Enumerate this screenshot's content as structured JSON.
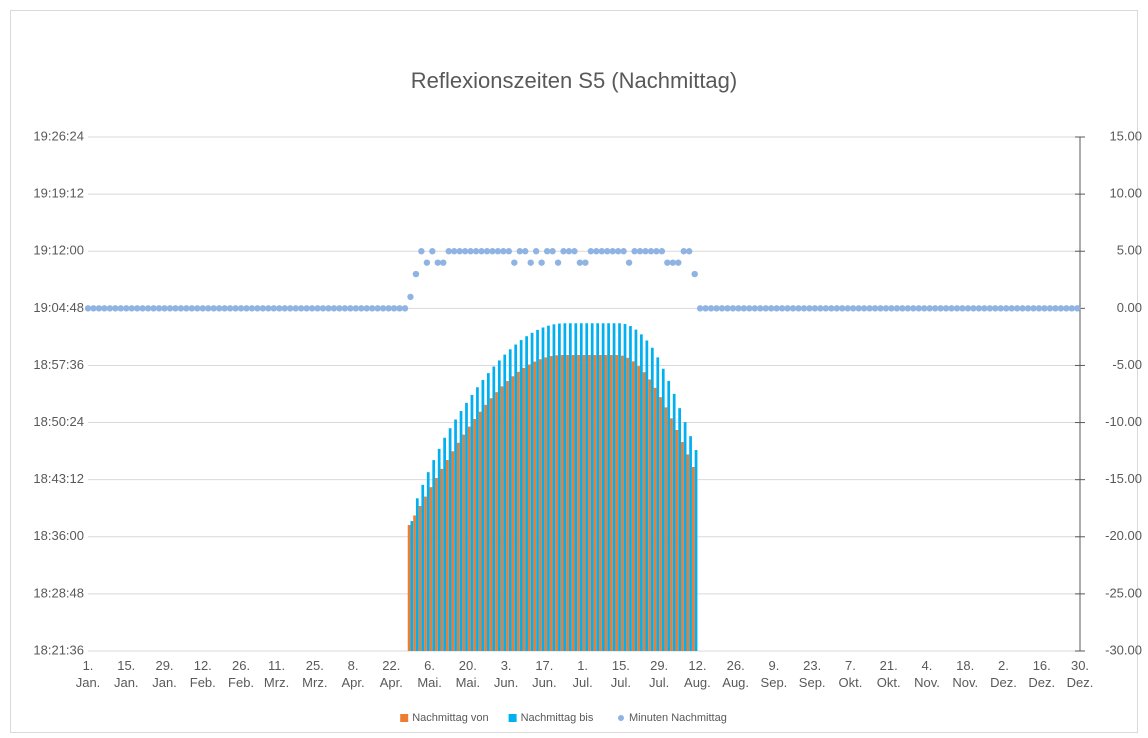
{
  "chart_data": {
    "type": "bar",
    "title": "Reflexionszeiten S5 (Nachmittag)",
    "x": [
      1,
      3,
      5,
      7,
      9,
      11,
      13,
      15,
      17,
      19,
      21,
      23,
      25,
      27,
      29,
      31,
      33,
      35,
      37,
      39,
      41,
      43,
      45,
      47,
      49,
      51,
      53,
      55,
      57,
      59,
      61,
      63,
      65,
      67,
      69,
      71,
      73,
      75,
      77,
      79,
      81,
      83,
      85,
      87,
      89,
      91,
      93,
      95,
      97,
      99,
      101,
      103,
      105,
      107,
      109,
      111,
      113,
      115,
      117,
      119,
      121,
      123,
      125,
      127,
      129,
      131,
      133,
      135,
      137,
      139,
      141,
      143,
      145,
      147,
      149,
      151,
      153,
      155,
      157,
      159,
      161,
      163,
      165,
      167,
      169,
      171,
      173,
      175,
      177,
      179,
      181,
      183,
      185,
      187,
      189,
      191,
      193,
      195,
      197,
      199,
      201,
      203,
      205,
      207,
      209,
      211,
      213,
      215,
      217,
      219,
      221,
      223,
      225,
      227,
      229,
      231,
      233,
      235,
      237,
      239,
      241,
      243,
      245,
      247,
      249,
      251,
      253,
      255,
      257,
      259,
      261,
      263,
      265,
      267,
      269,
      271,
      273,
      275,
      277,
      279,
      281,
      283,
      285,
      287,
      289,
      291,
      293,
      295,
      297,
      299,
      301,
      303,
      305,
      307,
      309,
      311,
      313,
      315,
      317,
      319,
      321,
      323,
      325,
      327,
      329,
      331,
      333,
      335,
      337,
      339,
      341,
      343,
      345,
      347,
      349,
      351,
      353,
      355,
      357,
      359,
      361,
      363
    ],
    "xlim": [
      1,
      364
    ],
    "xticks": [
      {
        "value": 1,
        "label": "1. Jan."
      },
      {
        "value": 15,
        "label": "15. Jan."
      },
      {
        "value": 29,
        "label": "29. Jan."
      },
      {
        "value": 43,
        "label": "12. Feb."
      },
      {
        "value": 57,
        "label": "26. Feb."
      },
      {
        "value": 70,
        "label": "11. Mrz."
      },
      {
        "value": 84,
        "label": "25. Mrz."
      },
      {
        "value": 98,
        "label": "8. Apr."
      },
      {
        "value": 112,
        "label": "22. Apr."
      },
      {
        "value": 126,
        "label": "6. Mai."
      },
      {
        "value": 140,
        "label": "20. Mai."
      },
      {
        "value": 154,
        "label": "3. Jun."
      },
      {
        "value": 168,
        "label": "17. Jun."
      },
      {
        "value": 182,
        "label": "1. Jul."
      },
      {
        "value": 196,
        "label": "15. Jul."
      },
      {
        "value": 210,
        "label": "29. Jul."
      },
      {
        "value": 224,
        "label": "12. Aug."
      },
      {
        "value": 238,
        "label": "26. Aug."
      },
      {
        "value": 252,
        "label": "9. Sep."
      },
      {
        "value": 266,
        "label": "23. Sep."
      },
      {
        "value": 280,
        "label": "7. Okt."
      },
      {
        "value": 294,
        "label": "21. Okt."
      },
      {
        "value": 308,
        "label": "4. Nov."
      },
      {
        "value": 322,
        "label": "18. Nov."
      },
      {
        "value": 336,
        "label": "2. Dez."
      },
      {
        "value": 350,
        "label": "16. Dez."
      },
      {
        "value": 364,
        "label": "30. Dez."
      }
    ],
    "ylim": [
      66096,
      69984
    ],
    "yticks": [
      {
        "value": 66096,
        "label": "18:21:36"
      },
      {
        "value": 66528,
        "label": "18:28:48"
      },
      {
        "value": 66960,
        "label": "18:36:00"
      },
      {
        "value": 67392,
        "label": "18:43:12"
      },
      {
        "value": 67824,
        "label": "18:50:24"
      },
      {
        "value": 68256,
        "label": "18:57:36"
      },
      {
        "value": 68688,
        "label": "19:04:48"
      },
      {
        "value": 69120,
        "label": "19:12:00"
      },
      {
        "value": 69552,
        "label": "19:19:12"
      },
      {
        "value": 69984,
        "label": "19:26:24"
      }
    ],
    "y2lim": [
      -30,
      15
    ],
    "y2ticks": [
      {
        "value": -30,
        "label": "-30.00"
      },
      {
        "value": -25,
        "label": "-25.00"
      },
      {
        "value": -20,
        "label": "-20.00"
      },
      {
        "value": -15,
        "label": "-15.00"
      },
      {
        "value": -10,
        "label": "-10.00"
      },
      {
        "value": -5,
        "label": "-5.00"
      },
      {
        "value": 0,
        "label": "0.00"
      },
      {
        "value": 5,
        "label": "5.00"
      },
      {
        "value": 10,
        "label": "10.00"
      },
      {
        "value": 15,
        "label": "15.00"
      }
    ],
    "grid": true,
    "legend": "bottom",
    "series": [
      {
        "name": "Nachmittag von",
        "color": "#ed7d31",
        "kind": "bar",
        "values": [
          null,
          null,
          null,
          null,
          null,
          null,
          null,
          null,
          null,
          null,
          null,
          null,
          null,
          null,
          null,
          null,
          null,
          null,
          null,
          null,
          null,
          null,
          null,
          null,
          null,
          null,
          null,
          null,
          null,
          null,
          null,
          null,
          null,
          null,
          null,
          null,
          null,
          null,
          null,
          null,
          null,
          null,
          null,
          null,
          null,
          null,
          null,
          null,
          null,
          null,
          null,
          null,
          null,
          null,
          null,
          null,
          null,
          null,
          null,
          67049,
          67121,
          67193,
          67264,
          67335,
          67405,
          67474,
          67541,
          67607,
          67671,
          67733,
          67793,
          67851,
          67906,
          67958,
          68008,
          68054,
          68098,
          68138,
          68174,
          68208,
          68237,
          68263,
          68285,
          68303,
          68317,
          68327,
          68333,
          68335,
          68335,
          68335,
          68335,
          68335,
          68335,
          68335,
          68335,
          68335,
          68335,
          68335,
          68330,
          68314,
          68287,
          68251,
          68205,
          68150,
          68087,
          68016,
          67939,
          67856,
          67768,
          67677,
          67583,
          67488,
          null,
          null,
          null,
          null,
          null,
          null,
          null,
          null,
          null,
          null,
          null,
          null,
          null,
          null,
          null,
          null,
          null,
          null,
          null,
          null,
          null,
          null,
          null,
          null,
          null,
          null,
          null,
          null,
          null,
          null,
          null,
          null,
          null,
          null,
          null,
          null,
          null,
          null,
          null,
          null,
          null,
          null,
          null,
          null,
          null,
          null,
          null,
          null,
          null,
          null,
          null,
          null,
          null,
          null,
          null,
          null,
          null,
          null,
          null,
          null,
          null,
          null,
          null,
          null,
          null,
          null,
          null,
          null,
          null,
          null
        ]
      },
      {
        "name": "Nachmittag bis",
        "color": "#00b0f0",
        "kind": "bar",
        "values": [
          null,
          null,
          null,
          null,
          null,
          null,
          null,
          null,
          null,
          null,
          null,
          null,
          null,
          null,
          null,
          null,
          null,
          null,
          null,
          null,
          null,
          null,
          null,
          null,
          null,
          null,
          null,
          null,
          null,
          null,
          null,
          null,
          null,
          null,
          null,
          null,
          null,
          null,
          null,
          null,
          null,
          null,
          null,
          null,
          null,
          null,
          null,
          null,
          null,
          null,
          null,
          null,
          null,
          null,
          null,
          null,
          null,
          null,
          null,
          67079,
          67251,
          67353,
          67449,
          67540,
          67625,
          67709,
          67781,
          67847,
          67911,
          67973,
          68033,
          68091,
          68146,
          68198,
          68248,
          68294,
          68338,
          68378,
          68414,
          68448,
          68477,
          68503,
          68525,
          68543,
          68557,
          68567,
          68573,
          68575,
          68575,
          68575,
          68575,
          68575,
          68575,
          68575,
          68575,
          68575,
          68575,
          68575,
          68570,
          68554,
          68527,
          68491,
          68445,
          68390,
          68317,
          68231,
          68139,
          68041,
          67933,
          67827,
          67721,
          67616,
          null,
          null,
          null,
          null,
          null,
          null,
          null,
          null,
          null,
          null,
          null,
          null,
          null,
          null,
          null,
          null,
          null,
          null,
          null,
          null,
          null,
          null,
          null,
          null,
          null,
          null,
          null,
          null,
          null,
          null,
          null,
          null,
          null,
          null,
          null,
          null,
          null,
          null,
          null,
          null,
          null,
          null,
          null,
          null,
          null,
          null,
          null,
          null,
          null,
          null,
          null,
          null,
          null,
          null,
          null,
          null,
          null,
          null,
          null,
          null,
          null,
          null,
          null,
          null,
          null,
          null,
          null,
          null,
          null,
          null
        ]
      },
      {
        "name": "Minuten Nachmittag",
        "color": "#8fb4e3",
        "kind": "scatter",
        "axis": "y2",
        "values": [
          0,
          0,
          0,
          0,
          0,
          0,
          0,
          0,
          0,
          0,
          0,
          0,
          0,
          0,
          0,
          0,
          0,
          0,
          0,
          0,
          0,
          0,
          0,
          0,
          0,
          0,
          0,
          0,
          0,
          0,
          0,
          0,
          0,
          0,
          0,
          0,
          0,
          0,
          0,
          0,
          0,
          0,
          0,
          0,
          0,
          0,
          0,
          0,
          0,
          0,
          0,
          0,
          0,
          0,
          0,
          0,
          0,
          0,
          0,
          1,
          3,
          5,
          4,
          5,
          4,
          4,
          5,
          5,
          5,
          5,
          5,
          5,
          5,
          5,
          5,
          5,
          5,
          5,
          4,
          5,
          5,
          4,
          5,
          4,
          5,
          5,
          4,
          5,
          5,
          5,
          4,
          4,
          5,
          5,
          5,
          5,
          5,
          5,
          5,
          4,
          5,
          5,
          5,
          5,
          5,
          5,
          4,
          4,
          4,
          5,
          5,
          3,
          0,
          0,
          0,
          0,
          0,
          0,
          0,
          0,
          0,
          0,
          0,
          0,
          0,
          0,
          0,
          0,
          0,
          0,
          0,
          0,
          0,
          0,
          0,
          0,
          0,
          0,
          0,
          0,
          0,
          0,
          0,
          0,
          0,
          0,
          0,
          0,
          0,
          0,
          0,
          0,
          0,
          0,
          0,
          0,
          0,
          0,
          0,
          0,
          0,
          0,
          0,
          0,
          0,
          0,
          0,
          0,
          0,
          0,
          0,
          0,
          0,
          0,
          0,
          0,
          0,
          0,
          0,
          0,
          0,
          0
        ]
      }
    ]
  }
}
